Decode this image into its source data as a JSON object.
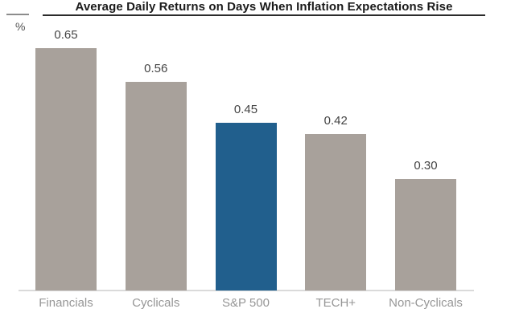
{
  "unit_label": "%",
  "chart_data": {
    "type": "bar",
    "title": "Average Daily Returns on Days When Inflation Expectations Rise",
    "categories": [
      "Financials",
      "Cyclicals",
      "S&P 500",
      "TECH+",
      "Non-Cyclicals"
    ],
    "values": [
      0.65,
      0.56,
      0.45,
      0.42,
      0.3
    ],
    "value_labels": [
      "0.65",
      "0.56",
      "0.45",
      "0.42",
      "0.30"
    ],
    "ylabel": "%",
    "ylim": [
      0,
      0.7
    ],
    "grid": false,
    "legend": false,
    "highlighted_category": "S&P 500",
    "colors": {
      "bar_default": "#a8a19b",
      "bar_highlight": "#215f8d",
      "baseline": "#dadada",
      "title_text": "#1a1a1a",
      "value_text": "#444444",
      "axis_label_text": "#969696"
    }
  }
}
